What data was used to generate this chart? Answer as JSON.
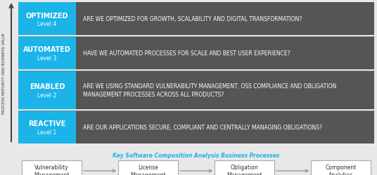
{
  "bg_color": "#e8e8e8",
  "dark_bg": "#555555",
  "blue_color": "#1ab4e8",
  "white": "#ffffff",
  "levels": [
    {
      "label": "OPTIMIZED",
      "sublabel": "Level 4",
      "question": "ARE WE OPTIMIZED FOR GROWTH, SCALABILITY AND DIGITAL TRANSFORMATION?"
    },
    {
      "label": "AUTOMATED",
      "sublabel": "Level 3",
      "question": "HAVE WE AUTOMATED PROCESSES FOR SCALE AND BEST USER EXPERIENCE?"
    },
    {
      "label": "ENABLED",
      "sublabel": "Level 2",
      "question": "ARE WE USING STANDARD VULNERABILITY MANAGEMENT, OSS COMPLIANCE AND OBLIGATION\nMANAGEMENT PROCESSES ACROSS ALL PRODUCTS?"
    },
    {
      "label": "REACTIVE",
      "sublabel": "Level 1",
      "question": "ARE OUR APPLICATIONS SECURE, COMPLIANT AND CENTRALLY MANAGING OBLIGATIONS?"
    }
  ],
  "process_boxes": [
    "Vulnerability\nManagement",
    "License\nManagement",
    "Obligation\nManagement",
    "Component\nAnalytics"
  ],
  "process_label": "Key Software Composition Analysis Business Processes",
  "y_axis_label": "PROCESS MATURITY AND BUSINESS VALUE"
}
